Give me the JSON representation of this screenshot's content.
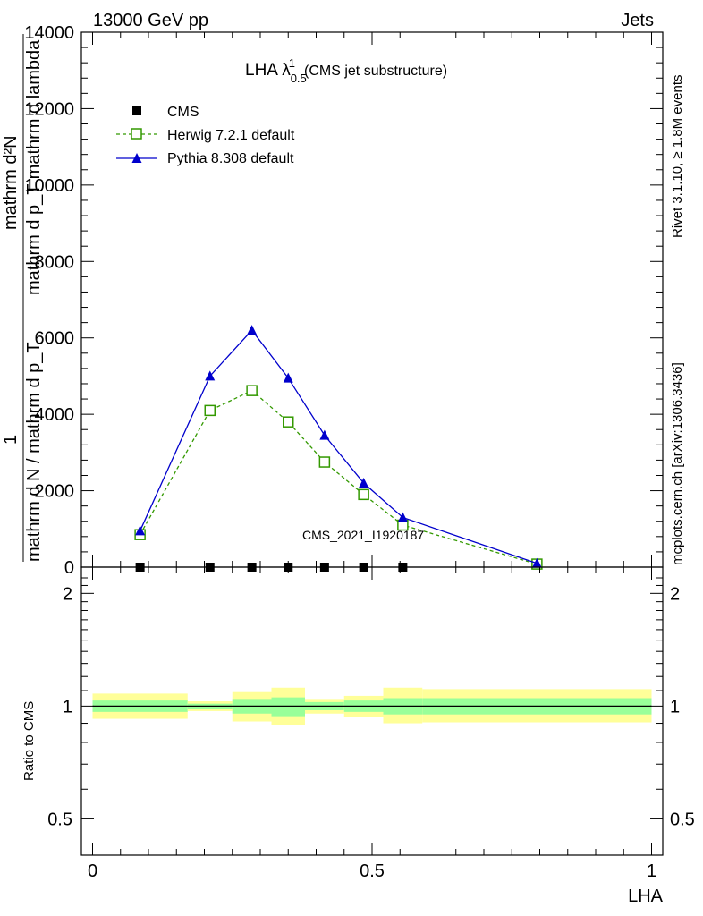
{
  "header": {
    "left": "13000 GeV pp",
    "right": "Jets"
  },
  "side_labels": {
    "rivet": "Rivet 3.1.10, ≥ 1.8M events",
    "mcplots": "mcplots.cern.ch [arXiv:1306.3436]"
  },
  "watermark": "CMS_2021_I1920187",
  "colors": {
    "herwig": "#339900",
    "pythia": "#0000cc",
    "cms": "#000000",
    "band_inner": "#99ff99",
    "band_outer": "#ffff99"
  },
  "chart_data": [
    {
      "type": "line",
      "title": "LHA λ",
      "title_sup": "1",
      "title_sub": "0.5",
      "title_note": "(CMS jet substructure)",
      "ylabel_line1": "mathrm d²N",
      "ylabel_line2": "mathrm d p_T mathrm d lambda",
      "ylabel_prefix": "1",
      "ylabel_denominator": "mathrm d N / mathrm d p_T",
      "ylim": [
        0,
        14000
      ],
      "xlim": [
        -0.02,
        1.02
      ],
      "y_ticks": [
        0,
        2000,
        4000,
        6000,
        8000,
        10000,
        12000,
        14000
      ],
      "legend_position": "top-left",
      "series": [
        {
          "name": "CMS",
          "key": "cms",
          "marker": "square-filled",
          "x": [
            0.085,
            0.21,
            0.285,
            0.35,
            0.415,
            0.485,
            0.555
          ],
          "y": [
            0,
            0,
            0,
            0,
            0,
            0,
            0
          ]
        },
        {
          "name": "Herwig 7.2.1 default",
          "key": "herwig",
          "marker": "square-open",
          "dashed": true,
          "x": [
            0.085,
            0.21,
            0.285,
            0.35,
            0.415,
            0.485,
            0.555,
            0.795
          ],
          "y": [
            850,
            4100,
            4620,
            3800,
            2750,
            1900,
            1100,
            80
          ]
        },
        {
          "name": "Pythia 8.308 default",
          "key": "pythia",
          "marker": "triangle-filled",
          "dashed": false,
          "x": [
            0.085,
            0.21,
            0.285,
            0.35,
            0.415,
            0.485,
            0.555,
            0.795
          ],
          "y": [
            950,
            5000,
            6200,
            4950,
            3450,
            2200,
            1300,
            100
          ]
        }
      ]
    },
    {
      "type": "area",
      "ylabel": "Ratio to CMS",
      "xlabel": "LHA",
      "xlim": [
        -0.02,
        1.02
      ],
      "ylim": [
        0.4,
        2.35
      ],
      "log_y": true,
      "x_ticks": [
        0,
        0.5,
        1
      ],
      "x_tick_labels": [
        "0",
        "0.5",
        "1"
      ],
      "y_ticks": [
        0.5,
        1,
        2
      ],
      "y_tick_labels": [
        "0.5",
        "1",
        "2"
      ],
      "bins": [
        {
          "x0": 0.0,
          "x1": 0.17,
          "inner": [
            0.965,
            1.035
          ],
          "outer": [
            0.925,
            1.08
          ]
        },
        {
          "x0": 0.17,
          "x1": 0.25,
          "inner": [
            0.98,
            1.015
          ],
          "outer": [
            0.97,
            1.03
          ]
        },
        {
          "x0": 0.25,
          "x1": 0.32,
          "inner": [
            0.955,
            1.045
          ],
          "outer": [
            0.91,
            1.09
          ]
        },
        {
          "x0": 0.32,
          "x1": 0.38,
          "inner": [
            0.94,
            1.055
          ],
          "outer": [
            0.89,
            1.12
          ]
        },
        {
          "x0": 0.38,
          "x1": 0.45,
          "inner": [
            0.975,
            1.025
          ],
          "outer": [
            0.955,
            1.045
          ]
        },
        {
          "x0": 0.45,
          "x1": 0.52,
          "inner": [
            0.965,
            1.035
          ],
          "outer": [
            0.935,
            1.065
          ]
        },
        {
          "x0": 0.52,
          "x1": 0.59,
          "inner": [
            0.95,
            1.05
          ],
          "outer": [
            0.9,
            1.12
          ]
        },
        {
          "x0": 0.59,
          "x1": 1.0,
          "inner": [
            0.95,
            1.05
          ],
          "outer": [
            0.905,
            1.11
          ]
        }
      ]
    }
  ]
}
